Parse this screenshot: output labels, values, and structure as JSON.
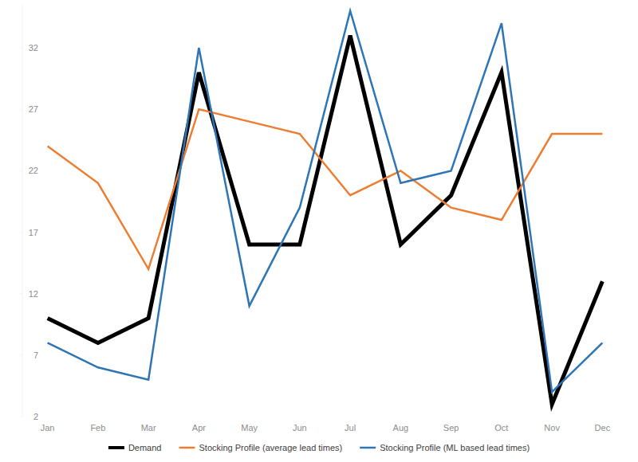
{
  "chart_data": {
    "type": "line",
    "categories": [
      "Jan",
      "Feb",
      "Mar",
      "Apr",
      "May",
      "Jun",
      "Jul",
      "Aug",
      "Sep",
      "Oct",
      "Nov",
      "Dec"
    ],
    "series": [
      {
        "name": "Demand",
        "color": "#000000",
        "values": [
          10,
          8,
          10,
          30,
          16,
          16,
          33,
          16,
          20,
          30,
          3,
          13
        ]
      },
      {
        "name": "Stocking Profile (average lead times)",
        "color": "#ed7d31",
        "values": [
          24,
          21,
          14,
          27,
          26,
          25,
          20,
          22,
          19,
          18,
          25,
          25
        ]
      },
      {
        "name": "Stocking Profile (ML based lead times)",
        "color": "#2e75b6",
        "values": [
          8,
          6,
          5,
          32,
          11,
          19,
          35,
          21,
          22,
          34,
          4,
          8
        ]
      }
    ],
    "ylim": [
      2,
      35.5
    ],
    "yticks": [
      2,
      7,
      12,
      17,
      22,
      27,
      32
    ],
    "grid": false,
    "legend": "bottom"
  }
}
